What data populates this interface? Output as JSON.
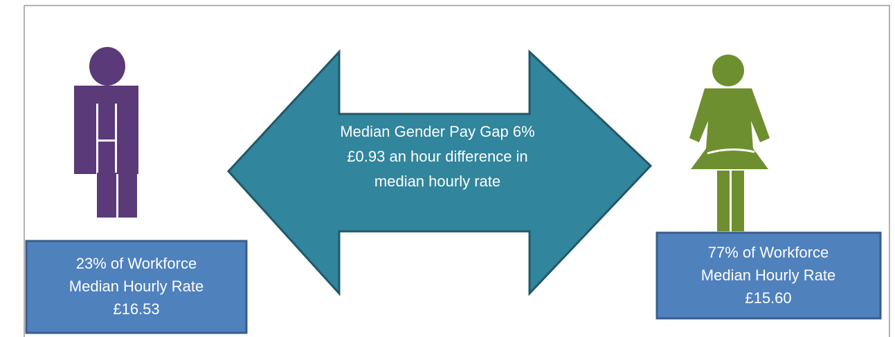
{
  "center": {
    "lines": [
      "Median Gender Pay Gap 6%",
      "£0.93 an hour difference in",
      "median hourly rate"
    ]
  },
  "male": {
    "lines": [
      "23% of Workforce",
      "Median Hourly Rate",
      "£16.53"
    ]
  },
  "female": {
    "lines": [
      "77% of Workforce",
      "Median Hourly Rate",
      "£15.60"
    ]
  }
}
